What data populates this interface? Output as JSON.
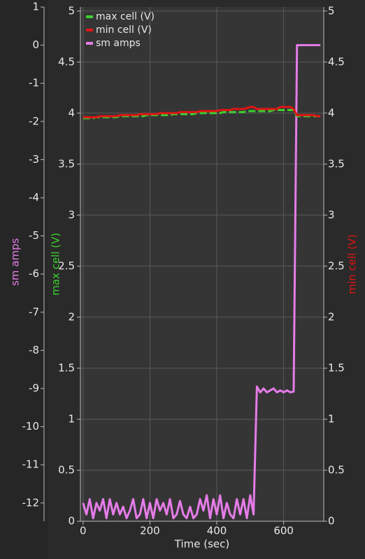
{
  "chart_data": {
    "type": "line",
    "x_label": "Time (sec)",
    "y_label": "max cell (V)",
    "y2_label": "min cell (V)",
    "y3_label": "sm amps",
    "xlim": [
      -8,
      720
    ],
    "xticks": [
      0,
      200,
      400,
      600
    ],
    "ylim": [
      0,
      5.04
    ],
    "yticks": [
      0,
      0.5,
      1,
      1.5,
      2,
      2.5,
      3,
      3.5,
      4,
      4.5,
      5
    ],
    "y2lim": [
      0,
      5.04
    ],
    "y2ticks": [
      0,
      0.5,
      1,
      1.5,
      2,
      2.5,
      3,
      3.5,
      4,
      4.5,
      5
    ],
    "y3lim": [
      -12.48,
      1
    ],
    "y3ticks": [
      1,
      0,
      -1,
      -2,
      -3,
      -4,
      -5,
      -6,
      -7,
      -8,
      -9,
      -10,
      -11,
      -12
    ],
    "grid": true,
    "legend": "top-left",
    "x": [
      0,
      10,
      20,
      30,
      40,
      50,
      60,
      70,
      80,
      90,
      100,
      110,
      120,
      130,
      140,
      150,
      160,
      170,
      180,
      190,
      200,
      210,
      220,
      230,
      240,
      250,
      260,
      270,
      280,
      290,
      300,
      310,
      320,
      330,
      340,
      350,
      360,
      370,
      380,
      390,
      400,
      410,
      420,
      430,
      440,
      450,
      460,
      470,
      480,
      490,
      500,
      510,
      520,
      530,
      540,
      550,
      560,
      570,
      580,
      590,
      600,
      610,
      620,
      630,
      640,
      650,
      660,
      670,
      680,
      690,
      700,
      710
    ],
    "series": [
      {
        "name": "max cell (V)",
        "color": "#3ccf2e",
        "axis": "y",
        "dashed": true,
        "values": [
          3.95,
          3.95,
          3.95,
          3.95,
          3.96,
          3.96,
          3.96,
          3.96,
          3.96,
          3.96,
          3.96,
          3.97,
          3.97,
          3.97,
          3.97,
          3.97,
          3.97,
          3.97,
          3.97,
          3.98,
          3.98,
          3.98,
          3.98,
          3.98,
          3.98,
          3.98,
          3.98,
          3.99,
          3.99,
          3.99,
          3.99,
          3.99,
          3.99,
          3.99,
          4.0,
          4.0,
          4.0,
          4.0,
          4.0,
          4.0,
          4.0,
          4.0,
          4.01,
          4.01,
          4.01,
          4.01,
          4.01,
          4.01,
          4.01,
          4.02,
          4.02,
          4.02,
          4.02,
          4.02,
          4.02,
          4.02,
          4.02,
          4.03,
          4.03,
          4.03,
          4.03,
          4.03,
          4.03,
          4.03,
          3.97,
          3.97,
          3.97,
          3.97,
          3.97,
          3.97,
          3.97,
          3.97
        ]
      },
      {
        "name": "min cell (V)",
        "color": "#e21414",
        "axis": "y2",
        "values": [
          3.96,
          3.96,
          3.96,
          3.96,
          3.96,
          3.97,
          3.97,
          3.97,
          3.97,
          3.97,
          3.97,
          3.98,
          3.98,
          3.98,
          3.98,
          3.98,
          3.98,
          3.99,
          3.99,
          3.99,
          3.99,
          3.99,
          3.99,
          4.0,
          4.0,
          4.0,
          4.0,
          4.0,
          4.0,
          4.01,
          4.01,
          4.01,
          4.01,
          4.01,
          4.01,
          4.02,
          4.02,
          4.02,
          4.02,
          4.02,
          4.02,
          4.03,
          4.03,
          4.03,
          4.03,
          4.04,
          4.04,
          4.04,
          4.04,
          4.05,
          4.06,
          4.06,
          4.04,
          4.04,
          4.04,
          4.04,
          4.04,
          4.04,
          4.04,
          4.06,
          4.06,
          4.06,
          4.06,
          4.04,
          3.98,
          3.98,
          3.98,
          3.98,
          3.98,
          3.98,
          3.97,
          3.97
        ]
      },
      {
        "name": "sm amps",
        "color": "#e57ce8",
        "axis": "y3",
        "values": [
          -12.0,
          -12.3,
          -11.9,
          -12.4,
          -12.0,
          -12.2,
          -11.9,
          -12.4,
          -11.9,
          -12.3,
          -12.0,
          -12.3,
          -12.1,
          -12.4,
          -12.2,
          -11.9,
          -12.4,
          -12.3,
          -11.9,
          -12.4,
          -12.0,
          -12.4,
          -11.9,
          -12.2,
          -12.0,
          -12.3,
          -11.9,
          -12.4,
          -12.3,
          -11.95,
          -12.3,
          -12.4,
          -12.1,
          -12.4,
          -12.3,
          -11.9,
          -12.2,
          -11.8,
          -12.4,
          -11.9,
          -12.3,
          -11.8,
          -12.4,
          -12.0,
          -12.3,
          -12.4,
          -11.9,
          -12.3,
          -11.9,
          -12.4,
          -11.8,
          -12.3,
          -8.95,
          -9.1,
          -9.0,
          -9.1,
          -9.05,
          -9.0,
          -9.1,
          -9.05,
          -9.1,
          -9.05,
          -9.1,
          -9.08,
          0,
          0,
          0,
          0,
          0,
          0,
          0,
          0
        ]
      }
    ]
  }
}
